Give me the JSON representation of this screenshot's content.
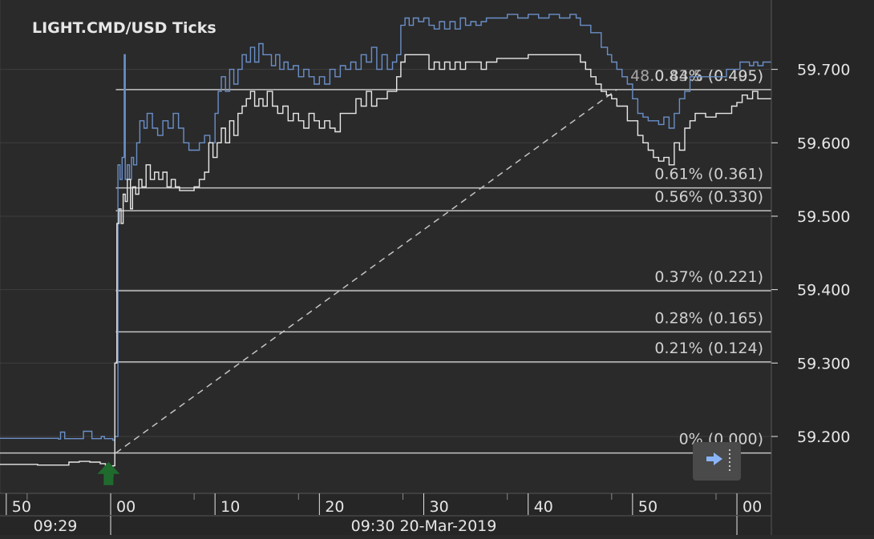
{
  "chart_data": {
    "type": "line",
    "title": "LIGHT.CMD/USD  Ticks",
    "colors": {
      "background": "#2a2a2a",
      "axis_background": "#262626",
      "grid": "#3e3e3e",
      "ask_line": "#6a8fc8",
      "bid_line": "#e8e8e8",
      "fib_line": "#c4c4c4",
      "text": "#e6e6e6",
      "fib_text": "#d0d0d0",
      "marker": "#1f6b2e",
      "button": "#4a4a4a",
      "button_arrow": "#8ab4f8"
    },
    "x_axis": {
      "unit": "seconds",
      "xlim": [
        -10.6,
        63.3
      ],
      "ticks": [
        {
          "t": -10,
          "label": "50"
        },
        {
          "t": 0,
          "label": "00"
        },
        {
          "t": 10,
          "label": "10"
        },
        {
          "t": 20,
          "label": "20"
        },
        {
          "t": 30,
          "label": "30"
        },
        {
          "t": 40,
          "label": "40"
        },
        {
          "t": 50,
          "label": "50"
        },
        {
          "t": 60,
          "label": "00"
        }
      ],
      "minor_ticks": [
        -8,
        8,
        18,
        28,
        38,
        48,
        58
      ],
      "bands": [
        {
          "from": -10.6,
          "to": 0,
          "label": "09:29"
        },
        {
          "from": 0,
          "to": 60,
          "label": "09:30 20-Mar-2019"
        },
        {
          "from": 60,
          "to": 63.3,
          "label": ""
        }
      ]
    },
    "y_axis": {
      "ylim": [
        59.1225,
        59.7945
      ],
      "ticks": [
        59.2,
        59.3,
        59.4,
        59.5,
        59.6,
        59.7
      ],
      "tick_labels": [
        "59.200",
        "59.300",
        "59.400",
        "59.500",
        "59.600",
        "59.700"
      ]
    },
    "series": [
      {
        "key": "ask",
        "points": [
          [
            -10.6,
            59.1975
          ],
          [
            -5,
            59.1965
          ],
          [
            -4.8,
            59.206
          ],
          [
            -4.4,
            59.197
          ],
          [
            -2.8,
            59.197
          ],
          [
            -2.6,
            59.207
          ],
          [
            -1.8,
            59.197
          ],
          [
            -0.9,
            59.2
          ],
          [
            -0.6,
            59.197
          ],
          [
            0.2,
            59.195
          ],
          [
            0.4,
            59.2
          ],
          [
            0.7,
            59.57
          ],
          [
            0.9,
            59.55
          ],
          [
            1.1,
            59.58
          ],
          [
            1.3,
            59.72
          ],
          [
            1.4,
            59.55
          ],
          [
            1.6,
            59.57
          ],
          [
            1.8,
            59.55
          ],
          [
            2.0,
            59.58
          ],
          [
            2.2,
            59.57
          ],
          [
            2.5,
            59.6
          ],
          [
            2.8,
            59.63
          ],
          [
            3.2,
            59.62
          ],
          [
            3.5,
            59.64
          ],
          [
            4.0,
            59.62
          ],
          [
            4.5,
            59.61
          ],
          [
            5.0,
            59.63
          ],
          [
            5.5,
            59.62
          ],
          [
            6.0,
            59.64
          ],
          [
            6.5,
            59.62
          ],
          [
            7.0,
            59.6
          ],
          [
            7.5,
            59.59
          ],
          [
            8.0,
            59.59
          ],
          [
            8.5,
            59.6
          ],
          [
            9.0,
            59.61
          ],
          [
            9.5,
            59.6
          ],
          [
            10.0,
            59.64
          ],
          [
            10.3,
            59.67
          ],
          [
            10.6,
            59.69
          ],
          [
            11.0,
            59.67
          ],
          [
            11.4,
            59.7
          ],
          [
            11.8,
            59.68
          ],
          [
            12.2,
            59.7
          ],
          [
            12.6,
            59.72
          ],
          [
            13.0,
            59.71
          ],
          [
            13.4,
            59.73
          ],
          [
            13.8,
            59.71
          ],
          [
            14.2,
            59.735
          ],
          [
            14.6,
            59.72
          ],
          [
            15.0,
            59.72
          ],
          [
            15.4,
            59.705
          ],
          [
            15.8,
            59.72
          ],
          [
            16.2,
            59.7
          ],
          [
            16.6,
            59.71
          ],
          [
            17.0,
            59.7
          ],
          [
            17.5,
            59.705
          ],
          [
            18.0,
            59.69
          ],
          [
            18.5,
            59.7
          ],
          [
            19.0,
            59.69
          ],
          [
            19.5,
            59.68
          ],
          [
            20.0,
            59.69
          ],
          [
            20.5,
            59.68
          ],
          [
            21.0,
            59.7
          ],
          [
            21.5,
            59.69
          ],
          [
            22.0,
            59.705
          ],
          [
            22.5,
            59.7
          ],
          [
            23.0,
            59.71
          ],
          [
            23.5,
            59.7
          ],
          [
            24.0,
            59.72
          ],
          [
            24.5,
            59.71
          ],
          [
            25.0,
            59.73
          ],
          [
            25.5,
            59.7
          ],
          [
            26.0,
            59.72
          ],
          [
            26.5,
            59.7
          ],
          [
            27.0,
            59.71
          ],
          [
            27.4,
            59.72
          ],
          [
            27.8,
            59.76
          ],
          [
            28.2,
            59.77
          ],
          [
            28.6,
            59.76
          ],
          [
            29.0,
            59.77
          ],
          [
            29.5,
            59.765
          ],
          [
            30.0,
            59.77
          ],
          [
            30.5,
            59.76
          ],
          [
            31.0,
            59.755
          ],
          [
            31.5,
            59.765
          ],
          [
            32.0,
            59.755
          ],
          [
            32.5,
            59.765
          ],
          [
            33.0,
            59.755
          ],
          [
            33.5,
            59.77
          ],
          [
            34.0,
            59.76
          ],
          [
            34.5,
            59.765
          ],
          [
            35.0,
            59.76
          ],
          [
            35.5,
            59.765
          ],
          [
            36.0,
            59.77
          ],
          [
            37.0,
            59.77
          ],
          [
            38.0,
            59.775
          ],
          [
            39.0,
            59.77
          ],
          [
            40.0,
            59.775
          ],
          [
            41.0,
            59.77
          ],
          [
            42.0,
            59.775
          ],
          [
            43.0,
            59.77
          ],
          [
            44.0,
            59.775
          ],
          [
            44.6,
            59.77
          ],
          [
            45.0,
            59.76
          ],
          [
            46.0,
            59.75
          ],
          [
            47.0,
            59.73
          ],
          [
            47.6,
            59.72
          ],
          [
            48.0,
            59.71
          ],
          [
            48.5,
            59.7
          ],
          [
            49.0,
            59.69
          ],
          [
            49.5,
            59.68
          ],
          [
            50.0,
            59.66
          ],
          [
            50.5,
            59.64
          ],
          [
            51.0,
            59.635
          ],
          [
            51.5,
            59.63
          ],
          [
            52.0,
            59.63
          ],
          [
            52.5,
            59.625
          ],
          [
            53.0,
            59.635
          ],
          [
            53.5,
            59.62
          ],
          [
            54.0,
            59.64
          ],
          [
            54.5,
            59.66
          ],
          [
            55.0,
            59.67
          ],
          [
            55.5,
            59.69
          ],
          [
            56.0,
            59.69
          ],
          [
            57.0,
            59.69
          ],
          [
            58.0,
            59.69
          ],
          [
            59.0,
            59.7
          ],
          [
            59.5,
            59.7
          ],
          [
            60.0,
            59.7
          ],
          [
            60.3,
            59.71
          ],
          [
            60.8,
            59.71
          ],
          [
            61.2,
            59.705
          ],
          [
            61.6,
            59.71
          ],
          [
            62.0,
            59.705
          ],
          [
            62.5,
            59.71
          ],
          [
            63.3,
            59.71
          ]
        ]
      },
      {
        "key": "bid",
        "points": [
          [
            -10.6,
            59.162
          ],
          [
            -7,
            59.161
          ],
          [
            -4.5,
            59.161
          ],
          [
            -4.0,
            59.165
          ],
          [
            -3.0,
            59.166
          ],
          [
            -2.0,
            59.165
          ],
          [
            -1.0,
            59.163
          ],
          [
            -0.5,
            59.16
          ],
          [
            -0.2,
            59.14
          ],
          [
            0.0,
            59.145
          ],
          [
            0.2,
            59.16
          ],
          [
            0.4,
            59.3
          ],
          [
            0.6,
            59.49
          ],
          [
            0.8,
            59.51
          ],
          [
            1.0,
            59.49
          ],
          [
            1.2,
            59.53
          ],
          [
            1.4,
            59.52
          ],
          [
            1.6,
            59.55
          ],
          [
            1.9,
            59.51
          ],
          [
            2.1,
            59.54
          ],
          [
            2.4,
            59.53
          ],
          [
            2.7,
            59.55
          ],
          [
            3.0,
            59.54
          ],
          [
            3.4,
            59.57
          ],
          [
            3.8,
            59.55
          ],
          [
            4.2,
            59.56
          ],
          [
            4.6,
            59.55
          ],
          [
            5.0,
            59.56
          ],
          [
            5.4,
            59.54
          ],
          [
            5.8,
            59.55
          ],
          [
            6.2,
            59.54
          ],
          [
            6.6,
            59.535
          ],
          [
            7.0,
            59.535
          ],
          [
            7.5,
            59.535
          ],
          [
            8.0,
            59.54
          ],
          [
            8.5,
            59.55
          ],
          [
            9.0,
            59.56
          ],
          [
            9.4,
            59.6
          ],
          [
            9.8,
            59.58
          ],
          [
            10.2,
            59.6
          ],
          [
            10.6,
            59.62
          ],
          [
            11.0,
            59.6
          ],
          [
            11.4,
            59.63
          ],
          [
            11.8,
            59.61
          ],
          [
            12.2,
            59.64
          ],
          [
            12.6,
            59.65
          ],
          [
            13.0,
            59.66
          ],
          [
            13.4,
            59.67
          ],
          [
            13.8,
            59.65
          ],
          [
            14.2,
            59.66
          ],
          [
            14.6,
            59.65
          ],
          [
            15.0,
            59.67
          ],
          [
            15.5,
            59.65
          ],
          [
            16.0,
            59.64
          ],
          [
            16.5,
            59.65
          ],
          [
            17.0,
            59.63
          ],
          [
            17.5,
            59.64
          ],
          [
            18.0,
            59.63
          ],
          [
            18.5,
            59.62
          ],
          [
            19.0,
            59.64
          ],
          [
            19.5,
            59.63
          ],
          [
            20.0,
            59.62
          ],
          [
            20.5,
            59.63
          ],
          [
            21.0,
            59.62
          ],
          [
            21.5,
            59.615
          ],
          [
            22.0,
            59.64
          ],
          [
            23.0,
            59.64
          ],
          [
            23.5,
            59.66
          ],
          [
            24.0,
            59.65
          ],
          [
            24.5,
            59.67
          ],
          [
            25.0,
            59.65
          ],
          [
            25.5,
            59.66
          ],
          [
            26.0,
            59.66
          ],
          [
            26.5,
            59.67
          ],
          [
            27.0,
            59.67
          ],
          [
            27.4,
            59.69
          ],
          [
            27.8,
            59.71
          ],
          [
            28.2,
            59.72
          ],
          [
            29.0,
            59.72
          ],
          [
            30.0,
            59.72
          ],
          [
            30.5,
            59.7
          ],
          [
            31.0,
            59.71
          ],
          [
            31.5,
            59.7
          ],
          [
            32.0,
            59.71
          ],
          [
            32.5,
            59.7
          ],
          [
            33.0,
            59.71
          ],
          [
            33.5,
            59.7
          ],
          [
            34.0,
            59.71
          ],
          [
            35.0,
            59.71
          ],
          [
            35.5,
            59.7
          ],
          [
            36.0,
            59.71
          ],
          [
            37.0,
            59.715
          ],
          [
            38.0,
            59.715
          ],
          [
            39.0,
            59.715
          ],
          [
            40.0,
            59.72
          ],
          [
            42.0,
            59.72
          ],
          [
            44.0,
            59.72
          ],
          [
            44.6,
            59.72
          ],
          [
            45.0,
            59.71
          ],
          [
            45.5,
            59.7
          ],
          [
            46.0,
            59.69
          ],
          [
            46.5,
            59.68
          ],
          [
            47.0,
            59.67
          ],
          [
            47.5,
            59.665
          ],
          [
            48.0,
            59.66
          ],
          [
            48.5,
            59.65
          ],
          [
            49.0,
            59.65
          ],
          [
            49.5,
            59.63
          ],
          [
            50.0,
            59.63
          ],
          [
            50.5,
            59.61
          ],
          [
            51.0,
            59.6
          ],
          [
            51.5,
            59.59
          ],
          [
            52.0,
            59.58
          ],
          [
            52.5,
            59.575
          ],
          [
            53.0,
            59.58
          ],
          [
            53.5,
            59.57
          ],
          [
            54.0,
            59.6
          ],
          [
            54.5,
            59.59
          ],
          [
            55.0,
            59.62
          ],
          [
            55.5,
            59.63
          ],
          [
            56.0,
            59.64
          ],
          [
            57.0,
            59.635
          ],
          [
            58.0,
            59.64
          ],
          [
            59.0,
            59.64
          ],
          [
            59.5,
            59.65
          ],
          [
            60.0,
            59.655
          ],
          [
            60.5,
            59.665
          ],
          [
            61.0,
            59.66
          ],
          [
            61.5,
            59.67
          ],
          [
            62.0,
            59.66
          ],
          [
            63.3,
            59.66
          ]
        ]
      }
    ],
    "fibonacci": {
      "anchor": {
        "t": 0.5,
        "price": 59.1775
      },
      "end": {
        "t": 48.5,
        "price": 59.6725
      },
      "levels": [
        {
          "label": "0% (0.000)",
          "price": 59.1775
        },
        {
          "label": "0.21% (0.124)",
          "price": 59.3015
        },
        {
          "label": "0.28% (0.165)",
          "price": 59.3425
        },
        {
          "label": "0.37% (0.221)",
          "price": 59.3985
        },
        {
          "label": "0.56% (0.330)",
          "price": 59.5075
        },
        {
          "label": "0.61% (0.361)",
          "price": 59.5385
        },
        {
          "label": "0.84% (0.495)",
          "price": 59.6725,
          "overlap": "48.0.43.5 (0.405)"
        }
      ]
    },
    "marker": {
      "type": "buy-arrow",
      "t": -0.2,
      "price": 59.162
    },
    "icons": {
      "scroll": "scroll-right-icon"
    }
  }
}
